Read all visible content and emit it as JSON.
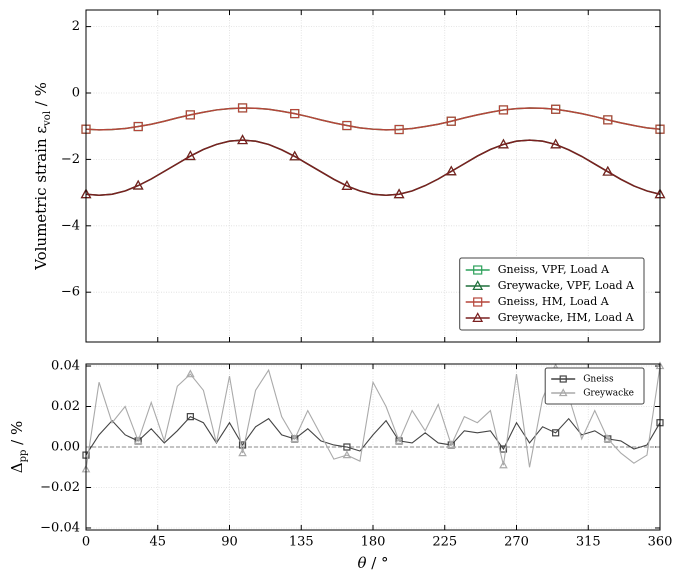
{
  "chart_data": [
    {
      "type": "line",
      "ylabel": [
        "Volumetric strain ε",
        "vol",
        " / %"
      ],
      "xlim": [
        0,
        360
      ],
      "ylim": [
        -7.5,
        2.5
      ],
      "yticks": [
        2,
        0,
        {
          "value": -2,
          "label": "−2"
        },
        {
          "value": -4,
          "label": "−4"
        },
        {
          "value": -6,
          "label": "−6"
        }
      ],
      "grid": true,
      "legend_loc": "lower right",
      "marker_every": 4,
      "x": [
        0,
        8.18,
        16.36,
        24.55,
        32.73,
        40.91,
        49.09,
        57.27,
        65.45,
        73.64,
        81.82,
        90,
        98.18,
        106.36,
        114.55,
        122.73,
        130.91,
        139.09,
        147.27,
        155.45,
        163.64,
        171.82,
        180,
        188.18,
        196.36,
        204.55,
        212.73,
        220.91,
        229.09,
        237.27,
        245.45,
        253.64,
        261.82,
        270,
        278.18,
        286.36,
        294.55,
        302.73,
        310.91,
        319.09,
        327.27,
        335.45,
        343.64,
        351.82,
        360
      ],
      "series": [
        {
          "name": "Gneiss, VPF, Load A",
          "color": "#2ca05a",
          "marker": "square",
          "values": [
            -1.09,
            -1.11,
            -1.1,
            -1.07,
            -1.01,
            -0.94,
            -0.85,
            -0.75,
            -0.66,
            -0.58,
            -0.51,
            -0.47,
            -0.45,
            -0.46,
            -0.49,
            -0.55,
            -0.62,
            -0.71,
            -0.81,
            -0.9,
            -0.98,
            -1.05,
            -1.09,
            -1.11,
            -1.1,
            -1.07,
            -1.01,
            -0.94,
            -0.85,
            -0.75,
            -0.66,
            -0.58,
            -0.51,
            -0.47,
            -0.45,
            -0.46,
            -0.49,
            -0.55,
            -0.62,
            -0.71,
            -0.81,
            -0.9,
            -0.98,
            -1.05,
            -1.09
          ]
        },
        {
          "name": "Greywacke, VPF, Load A",
          "color": "#1e6e3a",
          "marker": "triangle",
          "values": [
            -3.05,
            -3.08,
            -3.05,
            -2.95,
            -2.79,
            -2.59,
            -2.36,
            -2.13,
            -1.9,
            -1.7,
            -1.55,
            -1.45,
            -1.42,
            -1.45,
            -1.55,
            -1.71,
            -1.91,
            -2.14,
            -2.37,
            -2.6,
            -2.8,
            -2.95,
            -3.05,
            -3.08,
            -3.05,
            -2.95,
            -2.79,
            -2.59,
            -2.36,
            -2.13,
            -1.9,
            -1.7,
            -1.55,
            -1.45,
            -1.42,
            -1.45,
            -1.55,
            -1.71,
            -1.91,
            -2.14,
            -2.37,
            -2.6,
            -2.8,
            -2.95,
            -3.05
          ]
        },
        {
          "name": "Gneiss, HM, Load A",
          "color": "#b5453a",
          "marker": "square",
          "values": [
            -1.09,
            -1.11,
            -1.1,
            -1.07,
            -1.01,
            -0.94,
            -0.85,
            -0.75,
            -0.66,
            -0.58,
            -0.51,
            -0.47,
            -0.45,
            -0.46,
            -0.49,
            -0.55,
            -0.62,
            -0.71,
            -0.81,
            -0.9,
            -0.98,
            -1.05,
            -1.09,
            -1.11,
            -1.1,
            -1.07,
            -1.01,
            -0.94,
            -0.85,
            -0.75,
            -0.66,
            -0.58,
            -0.51,
            -0.47,
            -0.45,
            -0.46,
            -0.49,
            -0.55,
            -0.62,
            -0.71,
            -0.81,
            -0.9,
            -0.98,
            -1.05,
            -1.09
          ]
        },
        {
          "name": "Greywacke, HM, Load A",
          "color": "#7a2020",
          "marker": "triangle",
          "values": [
            -3.05,
            -3.08,
            -3.05,
            -2.95,
            -2.79,
            -2.59,
            -2.36,
            -2.13,
            -1.9,
            -1.7,
            -1.55,
            -1.45,
            -1.42,
            -1.45,
            -1.55,
            -1.71,
            -1.91,
            -2.14,
            -2.37,
            -2.6,
            -2.8,
            -2.95,
            -3.05,
            -3.08,
            -3.05,
            -2.95,
            -2.79,
            -2.59,
            -2.36,
            -2.13,
            -1.9,
            -1.7,
            -1.55,
            -1.45,
            -1.42,
            -1.45,
            -1.55,
            -1.71,
            -1.91,
            -2.14,
            -2.37,
            -2.6,
            -2.8,
            -2.95,
            -3.05
          ]
        }
      ]
    },
    {
      "type": "line",
      "ylabel": [
        "Δ",
        "pp",
        " / %"
      ],
      "xlabel": [
        "θ",
        " / °"
      ],
      "xlim": [
        0,
        360
      ],
      "ylim": [
        -0.041,
        0.041
      ],
      "xticks": [
        0,
        45,
        90,
        135,
        180,
        225,
        270,
        315,
        360
      ],
      "yticks": [
        0.04,
        0.02,
        {
          "value": 0,
          "label": "0.00"
        },
        {
          "value": -0.02,
          "label": "−0.02"
        },
        {
          "value": -0.04,
          "label": "−0.04"
        }
      ],
      "grid": true,
      "reference_line": 0,
      "legend_loc": "upper right",
      "marker_every": 4,
      "x": [
        0,
        8.18,
        16.36,
        24.55,
        32.73,
        40.91,
        49.09,
        57.27,
        65.45,
        73.64,
        81.82,
        90,
        98.18,
        106.36,
        114.55,
        122.73,
        130.91,
        139.09,
        147.27,
        155.45,
        163.64,
        171.82,
        180,
        188.18,
        196.36,
        204.55,
        212.73,
        220.91,
        229.09,
        237.27,
        245.45,
        253.64,
        261.82,
        270,
        278.18,
        286.36,
        294.55,
        302.73,
        310.91,
        319.09,
        327.27,
        335.45,
        343.64,
        351.82,
        360
      ],
      "series": [
        {
          "name": "Gneiss",
          "color": "#444444",
          "marker": "square",
          "values": [
            -0.004,
            0.006,
            0.013,
            0.006,
            0.003,
            0.009,
            0.002,
            0.008,
            0.015,
            0.012,
            0.002,
            0.012,
            0.001,
            0.01,
            0.014,
            0.006,
            0.004,
            0.009,
            0.003,
            0.001,
            0.0,
            -0.002,
            0.006,
            0.013,
            0.003,
            0.002,
            0.007,
            0.002,
            0.001,
            0.008,
            0.007,
            0.008,
            -0.001,
            0.012,
            0.002,
            0.01,
            0.007,
            0.014,
            0.006,
            0.008,
            0.004,
            0.003,
            -0.001,
            0.001,
            0.012
          ]
        },
        {
          "name": "Greywacke",
          "color": "#aaaaaa",
          "marker": "triangle",
          "values": [
            -0.011,
            0.032,
            0.012,
            0.02,
            0.003,
            0.022,
            0.003,
            0.03,
            0.036,
            0.028,
            0.002,
            0.035,
            -0.003,
            0.028,
            0.038,
            0.015,
            0.004,
            0.018,
            0.006,
            -0.006,
            -0.004,
            -0.007,
            0.032,
            0.02,
            0.003,
            0.018,
            0.008,
            0.021,
            0.001,
            0.015,
            0.012,
            0.018,
            -0.009,
            0.036,
            -0.01,
            0.024,
            0.039,
            0.025,
            0.004,
            0.018,
            0.004,
            -0.003,
            -0.008,
            -0.004,
            0.04
          ]
        }
      ]
    }
  ]
}
